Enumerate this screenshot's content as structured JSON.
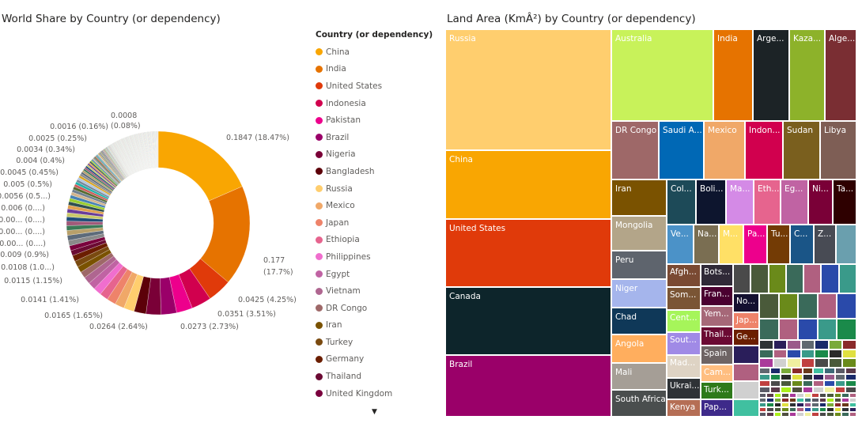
{
  "donut_chart": {
    "title": "World Share by Country (or dependency)"
  },
  "treemap_chart": {
    "title": "Land Area (KmÂ²) by Country (or dependency)"
  },
  "legend": {
    "title": "Country (or dependency)",
    "scroll_icon": "triangle-down"
  },
  "chart_data": [
    {
      "type": "pie",
      "title": "World Share by Country (or dependency)",
      "style": "donut",
      "legend_placement": "right",
      "slices": [
        {
          "name": "China",
          "value": 0.1847,
          "color": "#F9A602"
        },
        {
          "name": "India",
          "value": 0.177,
          "color": "#E67300"
        },
        {
          "name": "United States",
          "value": 0.0425,
          "color": "#E03A0A"
        },
        {
          "name": "Indonesia",
          "value": 0.0351,
          "color": "#D1004E"
        },
        {
          "name": "Pakistan",
          "value": 0.0283,
          "color": "#ED008C"
        },
        {
          "name": "Brazil",
          "value": 0.0273,
          "color": "#9A0069"
        },
        {
          "name": "Nigeria",
          "value": 0.0264,
          "color": "#7A0037"
        },
        {
          "name": "Bangladesh",
          "value": 0.0211,
          "color": "#5C0009"
        },
        {
          "name": "Russia",
          "value": 0.0187,
          "color": "#FFCE6E"
        },
        {
          "name": "Mexico",
          "value": 0.0165,
          "color": "#F0A868"
        },
        {
          "name": "Japan",
          "value": 0.016,
          "color": "#EE836A"
        },
        {
          "name": "Ethiopia",
          "value": 0.015,
          "color": "#E6648E"
        },
        {
          "name": "Philippines",
          "value": 0.0141,
          "color": "#F06ECE"
        },
        {
          "name": "Egypt",
          "value": 0.0131,
          "color": "#C063A3"
        },
        {
          "name": "Vietnam",
          "value": 0.0125,
          "color": "#AF6690"
        },
        {
          "name": "DR Congo",
          "value": 0.0115,
          "color": "#9E6868"
        },
        {
          "name": "Iran",
          "value": 0.0108,
          "color": "#7A5200"
        },
        {
          "name": "Turkey",
          "value": 0.0108,
          "color": "#7A4A10"
        },
        {
          "name": "Germany",
          "value": 0.0107,
          "color": "#6B1E00"
        },
        {
          "name": "Thailand",
          "value": 0.009,
          "color": "#6B0A33"
        },
        {
          "name": "United Kingdom",
          "value": 0.0087,
          "color": "#7A003D"
        }
      ],
      "data_labels": [
        "0.1847 (18.47%)",
        "0.177",
        "(17.7%)",
        "0.0425 (4.25%)",
        "0.0351 (3.51%)",
        "0.0273 (2.73%)",
        "0.0264 (2.64%)",
        "0.0165 (1.65%)",
        "0.0141 (1.41%)",
        "0.0115 (1.15%)",
        "0.0108 (1.0...)",
        "0.009 (0.9%)",
        "0.00... (0....)",
        "0.00... (0....)",
        "0.00... (0....)",
        "0.006 (0....)",
        "0.0056 (0.5...)",
        "0.005 (0.5%)",
        "0.0045 (0.45%)",
        "0.004 (0.4%)",
        "0.0034 (0.34%)",
        "0.0025 (0.25%)",
        "0.0016 (0.16%)",
        "0.0008",
        "(0.08%)"
      ]
    },
    {
      "type": "treemap",
      "title": "Land Area (KmÂ²) by Country (or dependency)",
      "cells": [
        {
          "label": "Russia",
          "color": "#FFCE6E"
        },
        {
          "label": "China",
          "color": "#F9A602"
        },
        {
          "label": "United States",
          "color": "#E03A0A"
        },
        {
          "label": "Canada",
          "color": "#0D252B"
        },
        {
          "label": "Brazil",
          "color": "#9A0069"
        },
        {
          "label": "Australia",
          "color": "#C8F25A"
        },
        {
          "label": "India",
          "color": "#E67300"
        },
        {
          "label": "Arge...",
          "color": "#1C2326"
        },
        {
          "label": "Kaza...",
          "color": "#8DB22A"
        },
        {
          "label": "Alge...",
          "color": "#7A2E33"
        },
        {
          "label": "DR Congo",
          "color": "#9E6868"
        },
        {
          "label": "Saudi A...",
          "color": "#0068B5"
        },
        {
          "label": "Mexico",
          "color": "#F0A868"
        },
        {
          "label": "Indon...",
          "color": "#D1004E"
        },
        {
          "label": "Sudan",
          "color": "#7A5F1E"
        },
        {
          "label": "Libya",
          "color": "#7E5E55"
        },
        {
          "label": "Iran",
          "color": "#7A5200"
        },
        {
          "label": "Mongolia",
          "color": "#B3A589"
        },
        {
          "label": "Peru",
          "color": "#5E646D"
        },
        {
          "label": "Niger",
          "color": "#A5B5EC"
        },
        {
          "label": "Chad",
          "color": "#0F3858"
        },
        {
          "label": "Angola",
          "color": "#FFAE5E"
        },
        {
          "label": "Mali",
          "color": "#A59E96"
        },
        {
          "label": "South Africa",
          "color": "#4A4E4E"
        },
        {
          "label": "Col...",
          "color": "#1D4A58"
        },
        {
          "label": "Boli...",
          "color": "#0D152E"
        },
        {
          "label": "Ma...",
          "color": "#D48AE6"
        },
        {
          "label": "Eth...",
          "color": "#E6648E"
        },
        {
          "label": "Eg...",
          "color": "#C063A3"
        },
        {
          "label": "Ni...",
          "color": "#7A0037"
        },
        {
          "label": "Ta...",
          "color": "#2E0000"
        },
        {
          "label": "Ve...",
          "color": "#4B92C8"
        },
        {
          "label": "Na...",
          "color": "#7A6E52"
        },
        {
          "label": "M...",
          "color": "#FFE066"
        },
        {
          "label": "Pa...",
          "color": "#ED008C"
        },
        {
          "label": "Tu...",
          "color": "#733B05"
        },
        {
          "label": "C...",
          "color": "#1A5587"
        },
        {
          "label": "Z...",
          "color": "#484B54"
        },
        {
          "label": "",
          "color": "#6A9FAE"
        },
        {
          "label": "Afgh...",
          "color": "#7A4A33"
        },
        {
          "label": "Som...",
          "color": "#7A5535"
        },
        {
          "label": "Cent...",
          "color": "#A6F55A"
        },
        {
          "label": "Sout...",
          "color": "#A08AE6"
        },
        {
          "label": "Mad...",
          "color": "#DED3C4"
        },
        {
          "label": "Ukrai...",
          "color": "#2E3236"
        },
        {
          "label": "Kenya",
          "color": "#B56E55"
        },
        {
          "label": "Bots...",
          "color": "#302A38"
        },
        {
          "label": "Fran...",
          "color": "#4A0030"
        },
        {
          "label": "Yem...",
          "color": "#A66878"
        },
        {
          "label": "Thail...",
          "color": "#6B0A33"
        },
        {
          "label": "Spain",
          "color": "#6E6464"
        },
        {
          "label": "Cam...",
          "color": "#FFBE80"
        },
        {
          "label": "Turk...",
          "color": "#2E7A1A"
        },
        {
          "label": "Pap...",
          "color": "#3E2A8A"
        },
        {
          "label": "No...",
          "color": "#141030"
        },
        {
          "label": "Jap...",
          "color": "#EE836A"
        },
        {
          "label": "Ge...",
          "color": "#6B1E00"
        }
      ]
    }
  ]
}
